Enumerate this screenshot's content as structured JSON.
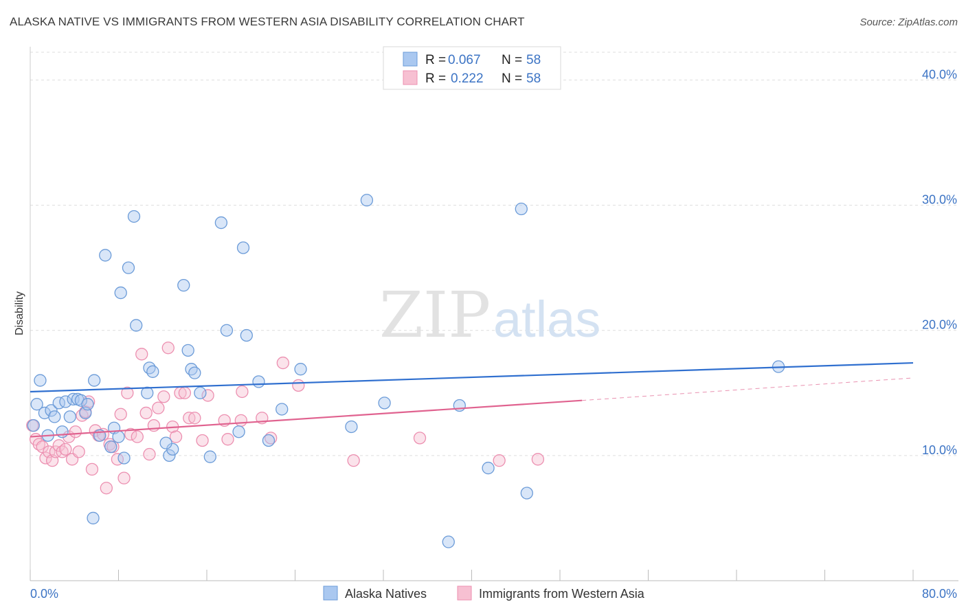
{
  "header": {
    "title": "ALASKA NATIVE VS IMMIGRANTS FROM WESTERN ASIA DISABILITY CORRELATION CHART",
    "source": "Source: ZipAtlas.com"
  },
  "watermark": {
    "zip": "ZIP",
    "atlas": "atlas"
  },
  "legend": {
    "series_1": {
      "r_label": "R =",
      "r_value": "0.067",
      "n_label": "N =",
      "n_value": "58"
    },
    "series_2": {
      "r_label": "R =",
      "r_value": "0.222",
      "n_label": "N =",
      "n_value": "58"
    }
  },
  "colors": {
    "blue_fill": "#aac8f0",
    "blue_stroke": "#6b9bd8",
    "blue_line": "#2f6fcf",
    "pink_fill": "#f7c0d2",
    "pink_stroke": "#ec8fb0",
    "pink_line": "#e0628f",
    "tick_text": "#3b73c4",
    "grid": "#dddddd"
  },
  "chart_data": {
    "type": "scatter",
    "xlabel": "",
    "ylabel": "Disability",
    "xlim": [
      0,
      80
    ],
    "ylim": [
      0,
      42
    ],
    "x_tick_labels": [
      "0.0%",
      "80.0%"
    ],
    "y_ticks": [
      10,
      20,
      30,
      40
    ],
    "y_tick_labels": [
      "10.0%",
      "20.0%",
      "30.0%",
      "40.0%"
    ],
    "grid": "horizontal dashed",
    "legend_position": "top-center",
    "series": [
      {
        "name": "Alaska Natives",
        "color": "#aac8f0",
        "trend": {
          "x0": 0,
          "y0": 15.1,
          "x1": 80,
          "y1": 17.4
        },
        "points": [
          [
            0.3,
            12.4
          ],
          [
            0.6,
            14.1
          ],
          [
            0.9,
            16.0
          ],
          [
            1.3,
            13.4
          ],
          [
            1.6,
            11.6
          ],
          [
            1.9,
            13.6
          ],
          [
            2.2,
            13.1
          ],
          [
            2.6,
            14.2
          ],
          [
            2.9,
            11.9
          ],
          [
            3.2,
            14.3
          ],
          [
            3.6,
            13.1
          ],
          [
            3.9,
            14.5
          ],
          [
            4.3,
            14.5
          ],
          [
            4.6,
            14.4
          ],
          [
            5.0,
            13.4
          ],
          [
            5.2,
            14.1
          ],
          [
            5.8,
            16.0
          ],
          [
            5.7,
            5.0
          ],
          [
            6.3,
            11.6
          ],
          [
            6.8,
            26.0
          ],
          [
            7.3,
            10.7
          ],
          [
            7.6,
            12.2
          ],
          [
            8.0,
            11.5
          ],
          [
            8.5,
            9.8
          ],
          [
            8.2,
            23.0
          ],
          [
            8.9,
            25.0
          ],
          [
            9.4,
            29.1
          ],
          [
            9.6,
            20.4
          ],
          [
            10.6,
            15.0
          ],
          [
            10.8,
            17.0
          ],
          [
            11.1,
            16.7
          ],
          [
            12.6,
            10.0
          ],
          [
            12.9,
            10.5
          ],
          [
            12.3,
            11.0
          ],
          [
            13.9,
            23.6
          ],
          [
            14.3,
            18.4
          ],
          [
            14.6,
            16.9
          ],
          [
            14.9,
            16.6
          ],
          [
            15.4,
            15.0
          ],
          [
            16.3,
            9.9
          ],
          [
            17.3,
            28.6
          ],
          [
            17.8,
            20.0
          ],
          [
            18.9,
            11.9
          ],
          [
            19.3,
            26.6
          ],
          [
            19.6,
            19.6
          ],
          [
            20.7,
            15.9
          ],
          [
            21.6,
            11.2
          ],
          [
            22.8,
            13.7
          ],
          [
            24.5,
            16.9
          ],
          [
            29.1,
            12.3
          ],
          [
            30.5,
            30.4
          ],
          [
            32.1,
            14.2
          ],
          [
            37.9,
            3.1
          ],
          [
            38.9,
            14.0
          ],
          [
            41.5,
            9.0
          ],
          [
            44.5,
            29.7
          ],
          [
            45.0,
            7.0
          ],
          [
            67.8,
            17.1
          ]
        ]
      },
      {
        "name": "Immigrants from Western Asia",
        "color": "#f7c0d2",
        "trend": {
          "x0": 0,
          "y0": 11.5,
          "x1": 50,
          "y1": 14.4,
          "dash_to_x": 80,
          "dash_to_y": 16.2
        },
        "points": [
          [
            0.2,
            12.4
          ],
          [
            0.5,
            11.3
          ],
          [
            0.8,
            10.9
          ],
          [
            1.1,
            10.7
          ],
          [
            1.4,
            9.8
          ],
          [
            1.7,
            10.3
          ],
          [
            2.0,
            9.6
          ],
          [
            2.3,
            10.3
          ],
          [
            2.6,
            10.8
          ],
          [
            2.9,
            10.3
          ],
          [
            3.2,
            10.5
          ],
          [
            3.5,
            11.5
          ],
          [
            3.8,
            9.7
          ],
          [
            4.1,
            11.9
          ],
          [
            4.4,
            10.3
          ],
          [
            4.7,
            13.2
          ],
          [
            5.0,
            13.5
          ],
          [
            5.3,
            14.3
          ],
          [
            5.6,
            8.9
          ],
          [
            5.9,
            12.0
          ],
          [
            6.2,
            11.6
          ],
          [
            6.6,
            11.7
          ],
          [
            6.9,
            7.4
          ],
          [
            7.2,
            10.9
          ],
          [
            7.5,
            10.7
          ],
          [
            7.9,
            9.7
          ],
          [
            8.2,
            13.3
          ],
          [
            8.5,
            8.2
          ],
          [
            8.8,
            15.0
          ],
          [
            9.1,
            11.7
          ],
          [
            9.7,
            11.5
          ],
          [
            10.1,
            18.1
          ],
          [
            10.5,
            13.4
          ],
          [
            10.8,
            10.1
          ],
          [
            11.2,
            12.4
          ],
          [
            11.6,
            13.8
          ],
          [
            12.1,
            14.7
          ],
          [
            12.5,
            18.6
          ],
          [
            12.9,
            12.3
          ],
          [
            13.2,
            11.5
          ],
          [
            13.6,
            15.0
          ],
          [
            14.0,
            15.0
          ],
          [
            14.4,
            13.0
          ],
          [
            14.9,
            13.0
          ],
          [
            15.6,
            11.2
          ],
          [
            16.1,
            14.8
          ],
          [
            17.6,
            12.8
          ],
          [
            17.9,
            11.3
          ],
          [
            19.1,
            12.8
          ],
          [
            19.2,
            15.1
          ],
          [
            21.0,
            13.0
          ],
          [
            21.8,
            11.4
          ],
          [
            22.9,
            17.4
          ],
          [
            24.3,
            15.6
          ],
          [
            29.3,
            9.6
          ],
          [
            35.3,
            11.4
          ],
          [
            42.5,
            9.6
          ],
          [
            46.0,
            9.7
          ]
        ]
      }
    ]
  }
}
